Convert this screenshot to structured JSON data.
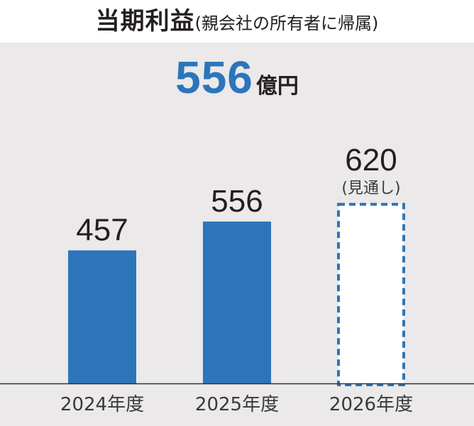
{
  "header": {
    "title": "当期利益",
    "subtitle": "(親会社の所有者に帰属)"
  },
  "headline": {
    "value": "556",
    "unit": "億円"
  },
  "chart_data": {
    "type": "bar",
    "categories": [
      "2024年度",
      "2025年度",
      "2026年度"
    ],
    "values": [
      457,
      556,
      620
    ],
    "value_labels": [
      "457",
      "556",
      "620"
    ],
    "notes": [
      "",
      "",
      "(見通し)"
    ],
    "forecast": [
      false,
      false,
      true
    ],
    "ylim": [
      0,
      740
    ],
    "grid": false,
    "colors": {
      "bar": "#2c75bb",
      "forecast_fill": "#ffffff",
      "forecast_stroke": "#2c75bb",
      "axis": "#333333"
    }
  }
}
